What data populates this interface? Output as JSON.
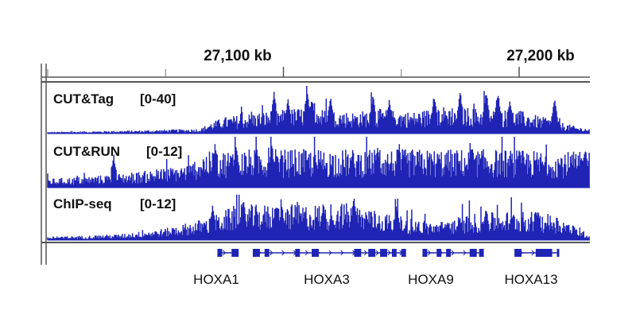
{
  "chart_data": {
    "type": "genome-browser-tracks",
    "axis": {
      "unit": "kb",
      "range_kb": [
        27000,
        27230
      ],
      "ticks": [
        {
          "position_kb": 27100,
          "label": "27,100 kb"
        },
        {
          "position_kb": 27200,
          "label": "27,200 kb"
        }
      ],
      "minor_ticks_kb": [
        27000,
        27050,
        27150
      ]
    },
    "tracks": [
      {
        "name": "CUT&Tag",
        "scale": "[0-40]",
        "ymax": 40,
        "color": "#1f24b5",
        "profile": [
          {
            "x": 27000,
            "y": 1
          },
          {
            "x": 27040,
            "y": 2
          },
          {
            "x": 27065,
            "y": 3
          },
          {
            "x": 27068,
            "y": 6
          },
          {
            "x": 27075,
            "y": 10
          },
          {
            "x": 27085,
            "y": 12
          },
          {
            "x": 27095,
            "y": 14
          },
          {
            "x": 27110,
            "y": 16
          },
          {
            "x": 27120,
            "y": 14
          },
          {
            "x": 27130,
            "y": 13
          },
          {
            "x": 27140,
            "y": 15
          },
          {
            "x": 27155,
            "y": 13
          },
          {
            "x": 27170,
            "y": 17
          },
          {
            "x": 27185,
            "y": 15
          },
          {
            "x": 27200,
            "y": 14
          },
          {
            "x": 27210,
            "y": 10
          },
          {
            "x": 27225,
            "y": 4
          },
          {
            "x": 27230,
            "y": 3
          }
        ],
        "peaks": [
          {
            "x": 27096,
            "y": 36
          },
          {
            "x": 27102,
            "y": 30
          },
          {
            "x": 27110,
            "y": 38
          },
          {
            "x": 27112,
            "y": 33
          },
          {
            "x": 27120,
            "y": 32
          },
          {
            "x": 27138,
            "y": 34
          },
          {
            "x": 27145,
            "y": 30
          },
          {
            "x": 27164,
            "y": 34
          },
          {
            "x": 27175,
            "y": 36
          },
          {
            "x": 27186,
            "y": 37
          },
          {
            "x": 27191,
            "y": 38
          },
          {
            "x": 27196,
            "y": 30
          },
          {
            "x": 27215,
            "y": 30
          }
        ]
      },
      {
        "name": "CUT&RUN",
        "scale": "[0-12]",
        "ymax": 12,
        "color": "#1f24b5",
        "profile": [
          {
            "x": 27000,
            "y": 1.5
          },
          {
            "x": 27020,
            "y": 2
          },
          {
            "x": 27045,
            "y": 3
          },
          {
            "x": 27060,
            "y": 4
          },
          {
            "x": 27066,
            "y": 6
          },
          {
            "x": 27080,
            "y": 6.5
          },
          {
            "x": 27110,
            "y": 6.5
          },
          {
            "x": 27150,
            "y": 6.5
          },
          {
            "x": 27190,
            "y": 6.5
          },
          {
            "x": 27230,
            "y": 6
          }
        ],
        "peaks": [
          {
            "x": 27028,
            "y": 8
          },
          {
            "x": 27071,
            "y": 11
          },
          {
            "x": 27080,
            "y": 10.5
          },
          {
            "x": 27095,
            "y": 11
          },
          {
            "x": 27140,
            "y": 10
          },
          {
            "x": 27180,
            "y": 10.5
          },
          {
            "x": 27200,
            "y": 10
          },
          {
            "x": 27228,
            "y": 10
          }
        ]
      },
      {
        "name": "ChIP-seq",
        "scale": "[0-12]",
        "ymax": 12,
        "color": "#1f24b5",
        "profile": [
          {
            "x": 27000,
            "y": 0.5
          },
          {
            "x": 27030,
            "y": 1
          },
          {
            "x": 27050,
            "y": 2
          },
          {
            "x": 27060,
            "y": 3
          },
          {
            "x": 27070,
            "y": 4
          },
          {
            "x": 27080,
            "y": 6
          },
          {
            "x": 27095,
            "y": 6
          },
          {
            "x": 27110,
            "y": 6
          },
          {
            "x": 27125,
            "y": 6.5
          },
          {
            "x": 27140,
            "y": 5
          },
          {
            "x": 27150,
            "y": 4
          },
          {
            "x": 27165,
            "y": 3
          },
          {
            "x": 27180,
            "y": 4.5
          },
          {
            "x": 27200,
            "y": 5
          },
          {
            "x": 27215,
            "y": 4.5
          },
          {
            "x": 27225,
            "y": 2
          },
          {
            "x": 27230,
            "y": 1
          }
        ],
        "peaks": [
          {
            "x": 27070,
            "y": 9
          },
          {
            "x": 27083,
            "y": 10
          },
          {
            "x": 27097,
            "y": 9
          },
          {
            "x": 27117,
            "y": 9
          },
          {
            "x": 27130,
            "y": 11
          },
          {
            "x": 27148,
            "y": 8.5
          },
          {
            "x": 27186,
            "y": 8
          },
          {
            "x": 27208,
            "y": 8
          }
        ]
      }
    ],
    "genes": [
      {
        "name": "HOXA1",
        "start_kb": 27072,
        "end_kb": 27081
      },
      {
        "name": "HOXA3",
        "start_kb": 27087,
        "end_kb": 27152
      },
      {
        "name": "HOXA9",
        "start_kb": 27159,
        "end_kb": 27183
      },
      {
        "name": "HOXA13",
        "start_kb": 27198,
        "end_kb": 27217
      }
    ],
    "gene_exons_kb": [
      [
        27072,
        27074
      ],
      [
        27078,
        27081
      ],
      [
        27087,
        27090
      ],
      [
        27092,
        27094
      ],
      [
        27105,
        27107
      ],
      [
        27112,
        27115
      ],
      [
        27130,
        27133
      ],
      [
        27136,
        27139
      ],
      [
        27141,
        27144
      ],
      [
        27146,
        27148
      ],
      [
        27150,
        27152
      ],
      [
        27159,
        27161
      ],
      [
        27165,
        27167
      ],
      [
        27169,
        27171
      ],
      [
        27179,
        27182
      ],
      [
        27183,
        27185
      ],
      [
        27198,
        27201
      ],
      [
        27207,
        27214
      ],
      [
        27216,
        27217
      ]
    ]
  }
}
